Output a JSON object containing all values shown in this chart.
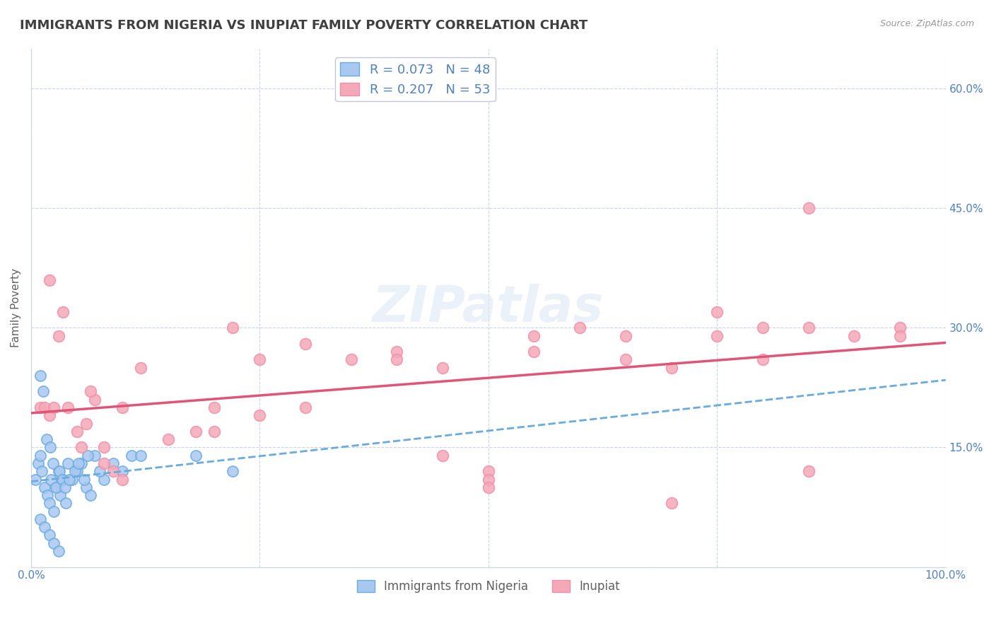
{
  "title": "IMMIGRANTS FROM NIGERIA VS INUPIAT FAMILY POVERTY CORRELATION CHART",
  "source": "Source: ZipAtlas.com",
  "ylabel": "Family Poverty",
  "legend_label1": "Immigrants from Nigeria",
  "legend_label2": "Inupiat",
  "r1": 0.073,
  "n1": 48,
  "r2": 0.207,
  "n2": 53,
  "xlim": [
    0,
    100
  ],
  "ylim": [
    0,
    65
  ],
  "x_ticks": [
    0,
    25,
    50,
    75,
    100
  ],
  "x_tick_labels": [
    "0.0%",
    "",
    "",
    "",
    "100.0%"
  ],
  "y_ticks": [
    0,
    15,
    30,
    45,
    60
  ],
  "y_tick_labels": [
    "",
    "15.0%",
    "30.0%",
    "45.0%",
    "60.0%"
  ],
  "color_nigeria": "#a8c8f0",
  "color_nigeria_edge": "#6aabdf",
  "color_inupiat": "#f5a8b8",
  "color_inupiat_edge": "#f090a8",
  "color_nigeria_line": "#6aabdf",
  "color_inupiat_line": "#e05575",
  "background_color": "#ffffff",
  "grid_color": "#c8d4e8",
  "title_color": "#404040",
  "axis_color": "#5080c0",
  "nigeria_x": [
    0.5,
    0.8,
    1.0,
    1.2,
    1.5,
    1.8,
    2.0,
    2.2,
    2.5,
    2.8,
    3.0,
    3.2,
    3.5,
    3.8,
    4.0,
    4.5,
    5.0,
    5.5,
    6.0,
    6.5,
    7.0,
    8.0,
    9.0,
    10.0,
    11.0,
    12.0,
    1.0,
    1.3,
    1.7,
    2.1,
    2.4,
    2.7,
    3.1,
    3.4,
    3.7,
    4.2,
    4.8,
    5.2,
    5.8,
    6.2,
    7.5,
    1.0,
    1.5,
    2.0,
    2.5,
    3.0,
    18.0,
    22.0
  ],
  "nigeria_y": [
    11,
    13,
    14,
    12,
    10,
    9,
    8,
    11,
    7,
    10,
    12,
    9,
    11,
    8,
    13,
    11,
    12,
    13,
    10,
    9,
    14,
    11,
    13,
    12,
    14,
    14,
    24,
    22,
    16,
    15,
    13,
    10,
    12,
    11,
    10,
    11,
    12,
    13,
    11,
    14,
    12,
    6,
    5,
    4,
    3,
    2,
    14,
    12
  ],
  "inupiat_x": [
    1.0,
    2.0,
    3.0,
    4.0,
    5.0,
    6.0,
    7.0,
    8.0,
    9.0,
    10.0,
    12.0,
    15.0,
    18.0,
    20.0,
    22.0,
    25.0,
    30.0,
    35.0,
    40.0,
    45.0,
    50.0,
    55.0,
    60.0,
    65.0,
    70.0,
    75.0,
    80.0,
    85.0,
    90.0,
    95.0,
    1.5,
    3.5,
    6.5,
    25.0,
    50.0,
    75.0,
    95.0,
    2.5,
    5.5,
    8.0,
    20.0,
    45.0,
    65.0,
    85.0,
    30.0,
    55.0,
    80.0,
    2.0,
    10.0,
    40.0,
    85.0,
    50.0,
    70.0
  ],
  "inupiat_y": [
    20,
    19,
    29,
    20,
    17,
    18,
    21,
    15,
    12,
    11,
    25,
    16,
    17,
    20,
    30,
    26,
    28,
    26,
    27,
    25,
    12,
    29,
    30,
    26,
    25,
    29,
    30,
    30,
    29,
    30,
    20,
    32,
    22,
    19,
    11,
    32,
    29,
    20,
    15,
    13,
    17,
    14,
    29,
    12,
    20,
    27,
    26,
    36,
    20,
    26,
    45,
    10,
    8
  ]
}
